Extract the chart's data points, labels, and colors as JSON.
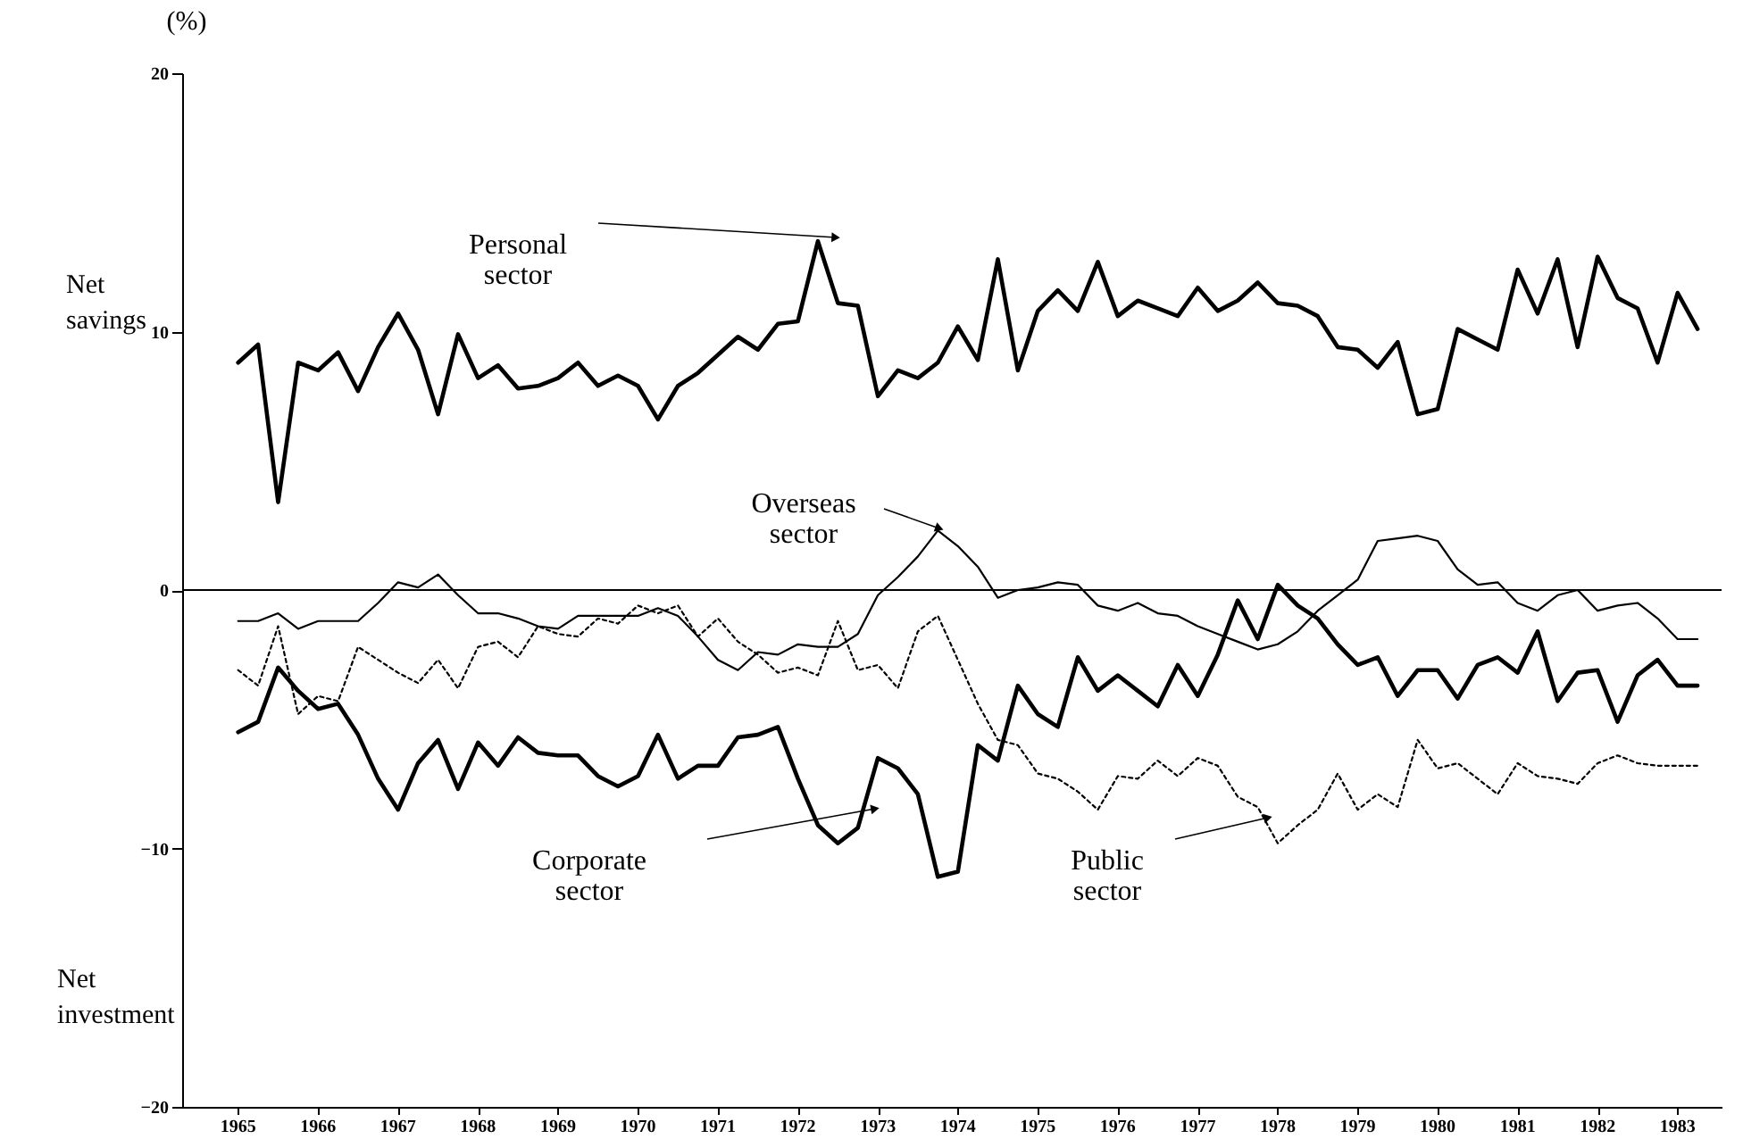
{
  "chart_data": {
    "type": "line",
    "ylabel": "(%)",
    "annotations": [
      "Net savings",
      "Net investment"
    ],
    "x": [
      1965.5,
      1965.75,
      1966,
      1966.25,
      1966.5,
      1966.75,
      1967,
      1967.25,
      1967.5,
      1967.75,
      1968,
      1968.25,
      1968.5,
      1968.75,
      1969,
      1969.25,
      1969.5,
      1969.75,
      1970,
      1970.25,
      1970.5,
      1970.75,
      1971,
      1971.25,
      1971.5,
      1971.75,
      1972,
      1972.25,
      1972.5,
      1972.75,
      1973,
      1973.25,
      1973.5,
      1973.75,
      1974,
      1974.25,
      1974.5,
      1974.75,
      1975,
      1975.25,
      1975.5,
      1975.75,
      1976,
      1976.25,
      1976.5,
      1976.75,
      1977,
      1977.25,
      1977.5,
      1977.75,
      1978,
      1978.25,
      1978.5,
      1978.75,
      1979,
      1979.25,
      1979.5,
      1979.75,
      1980,
      1980.25,
      1980.5,
      1980.75,
      1981,
      1981.25,
      1981.5,
      1981.75,
      1982,
      1982.25,
      1982.5,
      1982.75,
      1983,
      1983.25,
      1983.5,
      1983.75
    ],
    "series": [
      {
        "name": "Personal sector",
        "color": "#000000",
        "line_style": "solid",
        "values": [
          8.8,
          9.5,
          3.4,
          8.8,
          8.5,
          9.2,
          7.7,
          9.4,
          10.7,
          9.3,
          6.8,
          9.9,
          8.2,
          8.7,
          7.8,
          7.9,
          8.2,
          8.8,
          7.9,
          8.3,
          7.9,
          6.6,
          7.9,
          8.4,
          9.1,
          9.8,
          9.3,
          10.3,
          10.4,
          13.5,
          11.1,
          11.0,
          7.5,
          8.5,
          8.2,
          8.8,
          10.2,
          8.9,
          12.8,
          8.5,
          10.8,
          11.6,
          10.8,
          12.7,
          10.6,
          11.2,
          10.9,
          10.6,
          11.7,
          10.8,
          11.2,
          11.9,
          11.1,
          11.0,
          10.6,
          9.4,
          9.3,
          8.6,
          9.6,
          6.8,
          7.0,
          10.1,
          9.7,
          9.3,
          12.4,
          10.7,
          12.8,
          9.4,
          12.9,
          11.3,
          10.9,
          8.8,
          11.5,
          10.1
        ]
      },
      {
        "name": "Overseas sector",
        "color": "#000000",
        "line_style": "solid",
        "values": [
          -1.2,
          -1.2,
          -0.9,
          -1.5,
          -1.2,
          -1.2,
          -1.2,
          -0.5,
          0.3,
          0.1,
          0.6,
          -0.2,
          -0.9,
          -0.9,
          -1.1,
          -1.4,
          -1.5,
          -1.0,
          -1.0,
          -1.0,
          -1.0,
          -0.7,
          -1.0,
          -1.8,
          -2.7,
          -3.1,
          -2.4,
          -2.5,
          -2.1,
          -2.2,
          -2.2,
          -1.7,
          -0.2,
          0.5,
          1.3,
          2.3,
          1.7,
          0.9,
          -0.3,
          0.0,
          0.1,
          0.3,
          0.2,
          -0.6,
          -0.8,
          -0.5,
          -0.9,
          -1.0,
          -1.4,
          -1.7,
          -2.0,
          -2.3,
          -2.1,
          -1.6,
          -0.8,
          -0.2,
          0.4,
          1.9,
          2.0,
          2.1,
          1.9,
          0.8,
          0.2,
          0.3,
          -0.5,
          -0.8,
          -0.2,
          0.0,
          -0.8,
          -0.6,
          -0.5,
          -1.1,
          -1.9,
          -1.9
        ]
      },
      {
        "name": "Public sector",
        "color": "#000000",
        "line_style": "dotted",
        "values": [
          -3.1,
          -3.7,
          -1.4,
          -4.8,
          -4.1,
          -4.3,
          -2.2,
          -2.7,
          -3.2,
          -3.6,
          -2.7,
          -3.8,
          -2.2,
          -2.0,
          -2.6,
          -1.4,
          -1.7,
          -1.8,
          -1.1,
          -1.3,
          -0.6,
          -0.9,
          -0.6,
          -1.8,
          -1.1,
          -2.0,
          -2.5,
          -3.2,
          -3.0,
          -3.3,
          -1.2,
          -3.1,
          -2.9,
          -3.8,
          -1.6,
          -1.0,
          -2.7,
          -4.4,
          -5.8,
          -6.0,
          -7.1,
          -7.3,
          -7.8,
          -8.5,
          -7.2,
          -7.3,
          -6.6,
          -7.2,
          -6.5,
          -6.8,
          -8.0,
          -8.4,
          -9.8,
          -9.1,
          -8.5,
          -7.1,
          -8.5,
          -7.9,
          -8.4,
          -5.8,
          -6.9,
          -6.7,
          -7.3,
          -7.9,
          -6.7,
          -7.2,
          -7.3,
          -7.5,
          -6.7,
          -6.4,
          -6.7,
          -6.8,
          -6.8,
          -6.8
        ]
      },
      {
        "name": "Corporate sector",
        "color": "#000000",
        "line_style": "solid",
        "values": [
          -5.5,
          -5.1,
          -3.0,
          -3.9,
          -4.6,
          -4.4,
          -5.6,
          -7.3,
          -8.5,
          -6.7,
          -5.8,
          -7.7,
          -5.9,
          -6.8,
          -5.7,
          -6.3,
          -6.4,
          -6.4,
          -7.2,
          -7.6,
          -7.2,
          -5.6,
          -7.3,
          -6.8,
          -6.8,
          -5.7,
          -5.6,
          -5.3,
          -7.3,
          -9.1,
          -9.8,
          -9.2,
          -6.5,
          -6.9,
          -7.9,
          -11.1,
          -10.9,
          -6.0,
          -6.6,
          -3.7,
          -4.8,
          -5.3,
          -2.6,
          -3.9,
          -3.3,
          -3.9,
          -4.5,
          -2.9,
          -4.1,
          -2.5,
          -0.4,
          -1.9,
          0.2,
          -0.6,
          -1.1,
          -2.1,
          -2.9,
          -2.6,
          -4.1,
          -3.1,
          -3.1,
          -4.2,
          -2.9,
          -2.6,
          -3.2,
          -1.6,
          -4.3,
          -3.2,
          -3.1,
          -5.1,
          -3.3,
          -2.7,
          -3.7,
          -3.7
        ]
      }
    ],
    "xlim": [
      1964.8,
      1984.05
    ],
    "xticks": [
      {
        "value": 1965.5,
        "label": "1965"
      },
      {
        "value": 1966.5,
        "label": "1966"
      },
      {
        "value": 1967.5,
        "label": "1967"
      },
      {
        "value": 1968.5,
        "label": "1968"
      },
      {
        "value": 1969.5,
        "label": "1969"
      },
      {
        "value": 1970.5,
        "label": "1970"
      },
      {
        "value": 1971.5,
        "label": "1971"
      },
      {
        "value": 1972.5,
        "label": "1972"
      },
      {
        "value": 1973.5,
        "label": "1973"
      },
      {
        "value": 1974.5,
        "label": "1974"
      },
      {
        "value": 1975.5,
        "label": "1975"
      },
      {
        "value": 1976.5,
        "label": "1976"
      },
      {
        "value": 1977.5,
        "label": "1977"
      },
      {
        "value": 1978.5,
        "label": "1978"
      },
      {
        "value": 1979.5,
        "label": "1979"
      },
      {
        "value": 1980.5,
        "label": "1980"
      },
      {
        "value": 1981.5,
        "label": "1981"
      },
      {
        "value": 1982.5,
        "label": "1982"
      },
      {
        "value": 1983.5,
        "label": "1983"
      }
    ],
    "ylim": [
      -20,
      20
    ],
    "yticks": [
      -20,
      -10,
      0,
      10,
      20
    ],
    "ref_lines": [
      {
        "axis": "y",
        "value": 0,
        "color": "#000000"
      }
    ],
    "grid": false,
    "marker": "none"
  }
}
